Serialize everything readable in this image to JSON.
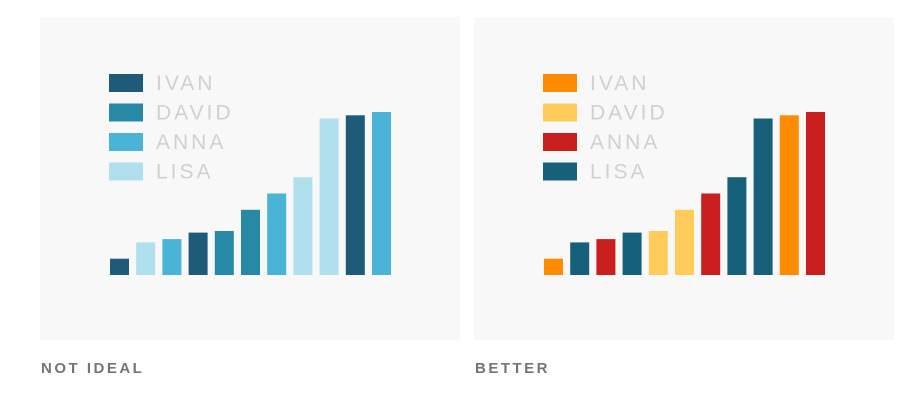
{
  "captions": {
    "left": "NOT IDEAL",
    "right": "BETTER"
  },
  "chart_data": [
    {
      "type": "bar",
      "title": "",
      "xlabel": "",
      "ylabel": "",
      "grid": false,
      "legend_position": "top-left",
      "legend": [
        {
          "label": "IVAN",
          "color": "#1d5b79"
        },
        {
          "label": "DAVID",
          "color": "#2789a6"
        },
        {
          "label": "ANNA",
          "color": "#49b3d8"
        },
        {
          "label": "LISA",
          "color": "#b0dfee"
        }
      ],
      "values": [
        1,
        2,
        2.2,
        2.6,
        2.7,
        4,
        5,
        6,
        9.6,
        9.8,
        10
      ],
      "series": [
        "IVAN",
        "LISA",
        "ANNA",
        "IVAN",
        "DAVID",
        "DAVID",
        "ANNA",
        "LISA",
        "LISA",
        "IVAN",
        "ANNA"
      ],
      "ylim": [
        0,
        10
      ]
    },
    {
      "type": "bar",
      "title": "",
      "xlabel": "",
      "ylabel": "",
      "grid": false,
      "legend_position": "top-left",
      "legend": [
        {
          "label": "IVAN",
          "color": "#ff8c00"
        },
        {
          "label": "DAVID",
          "color": "#ffcc5c"
        },
        {
          "label": "ANNA",
          "color": "#c91f1f"
        },
        {
          "label": "LISA",
          "color": "#17607a"
        }
      ],
      "values": [
        1,
        2,
        2.2,
        2.6,
        2.7,
        4,
        5,
        6,
        9.6,
        9.8,
        10
      ],
      "series": [
        "IVAN",
        "LISA",
        "ANNA",
        "LISA",
        "DAVID",
        "DAVID",
        "ANNA",
        "LISA",
        "LISA",
        "IVAN",
        "ANNA"
      ],
      "ylim": [
        0,
        10
      ]
    }
  ]
}
